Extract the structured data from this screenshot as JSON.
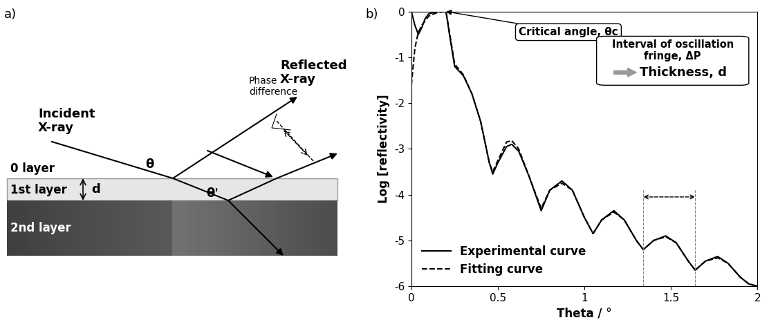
{
  "panel_labels": [
    "a)",
    "b)"
  ],
  "diagram": {
    "incident": "Incident\nX-ray",
    "reflected": "Reflected\nX-ray",
    "phase": "Phase\ndifference",
    "layer0": "0 layer",
    "layer1": "1st layer",
    "layer2": "2nd layer",
    "theta": "θ",
    "theta_prime": "θ'",
    "thickness": "d"
  },
  "chart_data": {
    "type": "line",
    "xlabel": "Theta / °",
    "ylabel": "Log [reflectivity]",
    "xlim": [
      0,
      2
    ],
    "ylim": [
      -6,
      0
    ],
    "xticks": [
      0,
      0.5,
      1,
      1.5,
      2
    ],
    "yticks": [
      0,
      -1,
      -2,
      -3,
      -4,
      -5,
      -6
    ],
    "legend": "lower left",
    "x": [
      0,
      0.02,
      0.04,
      0.06,
      0.08,
      0.1,
      0.15,
      0.2,
      0.22,
      0.25,
      0.3,
      0.35,
      0.4,
      0.45,
      0.47,
      0.5,
      0.55,
      0.58,
      0.62,
      0.68,
      0.75,
      0.8,
      0.87,
      0.93,
      1.0,
      1.05,
      1.1,
      1.17,
      1.23,
      1.3,
      1.34,
      1.4,
      1.47,
      1.53,
      1.6,
      1.64,
      1.7,
      1.77,
      1.83,
      1.9,
      1.95,
      2.0
    ],
    "series": [
      {
        "name": "Experimental curve",
        "color": "#000000",
        "line_style": "solid",
        "values": [
          0,
          -0.3,
          -0.5,
          -0.35,
          -0.15,
          -0.05,
          0,
          0,
          -0.5,
          -1.2,
          -1.4,
          -1.8,
          -2.4,
          -3.3,
          -3.55,
          -3.3,
          -2.95,
          -2.9,
          -3.05,
          -3.6,
          -4.35,
          -3.9,
          -3.7,
          -3.9,
          -4.5,
          -4.85,
          -4.55,
          -4.35,
          -4.55,
          -5.0,
          -5.2,
          -5.0,
          -4.9,
          -5.05,
          -5.45,
          -5.65,
          -5.45,
          -5.35,
          -5.5,
          -5.8,
          -5.95,
          -6.0
        ]
      },
      {
        "name": "Fitting curve",
        "color": "#000000",
        "line_style": "dashed",
        "values": [
          -1.6,
          -0.8,
          -0.45,
          -0.3,
          -0.2,
          -0.1,
          -0.02,
          0,
          -0.45,
          -1.15,
          -1.38,
          -1.8,
          -2.4,
          -3.3,
          -3.5,
          -3.25,
          -2.85,
          -2.82,
          -3.0,
          -3.6,
          -4.3,
          -3.9,
          -3.75,
          -3.9,
          -4.5,
          -4.85,
          -4.55,
          -4.38,
          -4.55,
          -5.0,
          -5.2,
          -5.0,
          -4.92,
          -5.05,
          -5.45,
          -5.65,
          -5.45,
          -5.38,
          -5.5,
          -5.8,
          -5.95,
          -6.0
        ]
      }
    ],
    "critical_angle": 0.2,
    "critical_label": "Critical angle, θc",
    "fringe_interval": [
      1.34,
      1.64
    ],
    "fringe_label": "Interval of oscillation\nfringe, ΔP",
    "thickness_label": "Thickness, d"
  }
}
